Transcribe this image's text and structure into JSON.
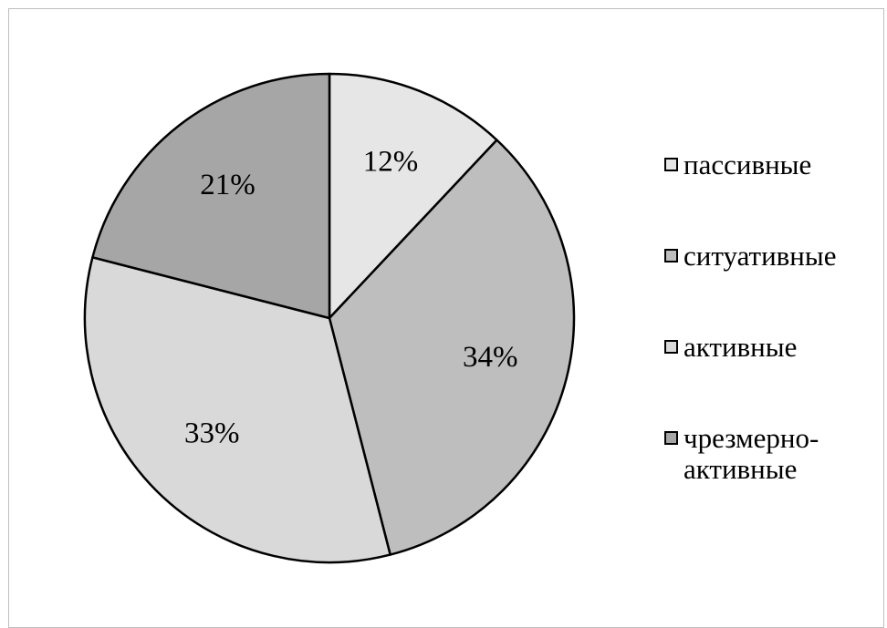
{
  "chart_data": {
    "type": "pie",
    "title": "",
    "slices": [
      {
        "name": "пассивные",
        "value": 12,
        "label": "12%",
        "color": "#e6e6e6"
      },
      {
        "name": "ситуативные",
        "value": 34,
        "label": "34%",
        "color": "#bebebe"
      },
      {
        "name": "активные",
        "value": 33,
        "label": "33%",
        "color": "#d9d9d9"
      },
      {
        "name": "чрезмерно-активные",
        "value": 21,
        "label": "21%",
        "color": "#a6a6a6"
      }
    ],
    "start_angle_deg": 0,
    "direction": "clockwise",
    "legend_position": "right"
  },
  "legend": {
    "items": [
      {
        "label": "пассивные",
        "color": "#e6e6e6"
      },
      {
        "label": "ситуативные",
        "color": "#bebebe"
      },
      {
        "label": "активные",
        "color": "#d9d9d9"
      },
      {
        "label": "чрезмерно-активные",
        "color": "#a6a6a6"
      }
    ]
  }
}
